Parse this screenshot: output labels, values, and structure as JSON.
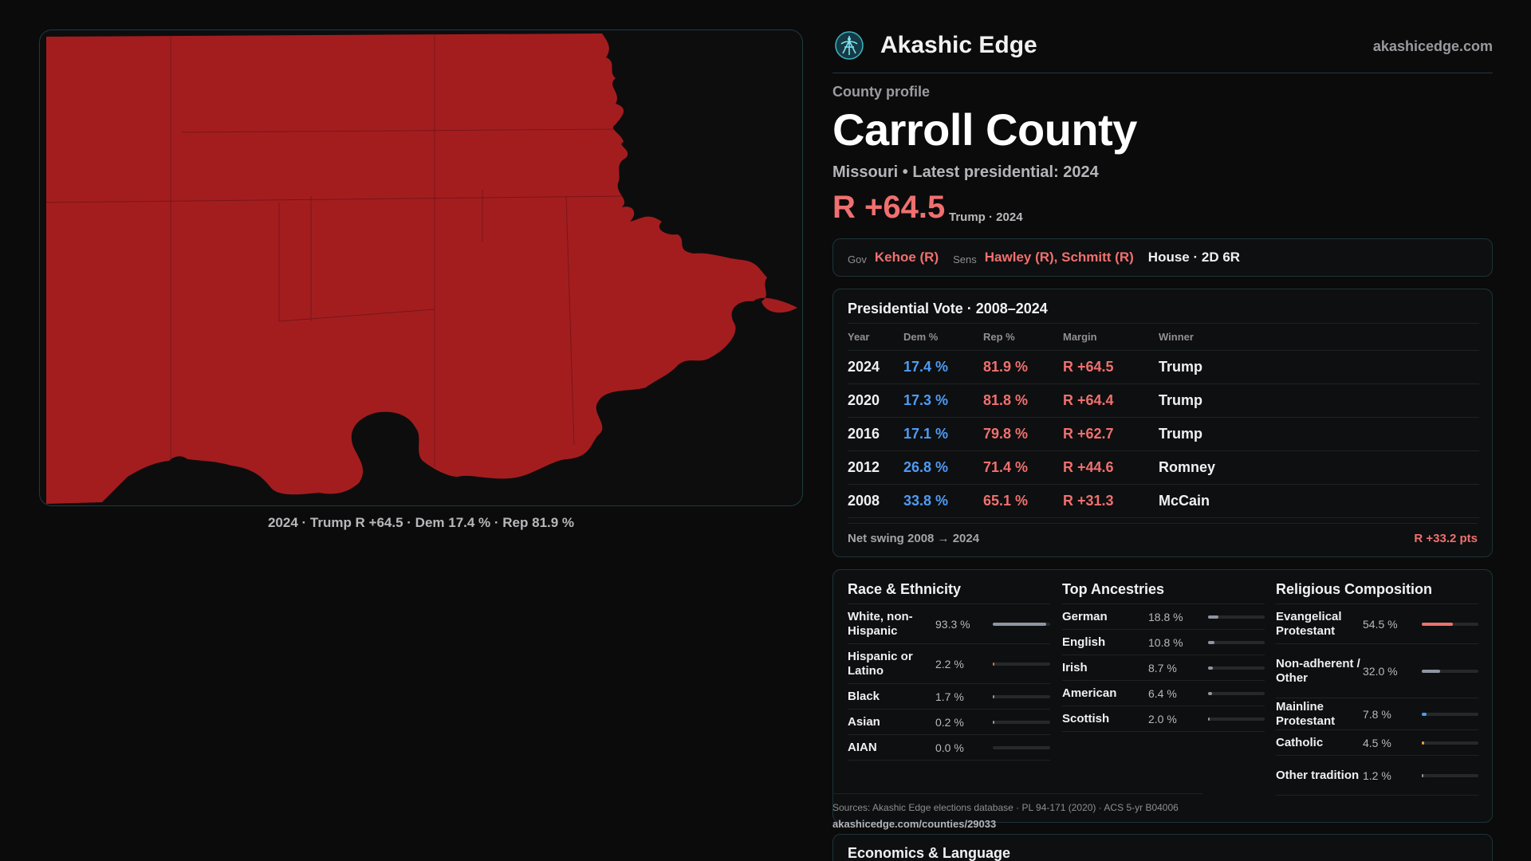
{
  "brand": {
    "name": "Akashic Edge",
    "url": "akashicedge.com",
    "logo_icon": "akashic-logo-icon"
  },
  "map": {
    "fill_color": "#a31d1f",
    "caption": "2024 · Trump R +64.5 · Dem 17.4 % · Rep 81.9 %"
  },
  "profile": {
    "eyebrow": "County profile",
    "title": "Carroll County",
    "subline": "Missouri • Latest presidential: 2024",
    "margin": "R +64.5",
    "margin_note": "Trump · 2024"
  },
  "officials": {
    "gov_label": "Gov",
    "gov": "Kehoe (R)",
    "sens_label": "Sens",
    "sens": "Hawley (R), Schmitt (R)",
    "house": "House · 2D 6R"
  },
  "vote_table": {
    "title": "Presidential Vote · 2008–2024",
    "headers": {
      "year": "Year",
      "dem": "Dem %",
      "rep": "Rep %",
      "margin": "Margin",
      "winner": "Winner"
    },
    "rows": [
      {
        "year": "2024",
        "dem": "17.4 %",
        "rep": "81.9 %",
        "margin": "R +64.5",
        "winner": "Trump"
      },
      {
        "year": "2020",
        "dem": "17.3 %",
        "rep": "81.8 %",
        "margin": "R +64.4",
        "winner": "Trump"
      },
      {
        "year": "2016",
        "dem": "17.1 %",
        "rep": "79.8 %",
        "margin": "R +62.7",
        "winner": "Trump"
      },
      {
        "year": "2012",
        "dem": "26.8 %",
        "rep": "71.4 %",
        "margin": "R +44.6",
        "winner": "Romney"
      },
      {
        "year": "2008",
        "dem": "33.8 %",
        "rep": "65.1 %",
        "margin": "R +31.3",
        "winner": "McCain"
      }
    ],
    "net_swing_label": "Net swing 2008 → 2024",
    "net_swing_value": "R +33.2 pts"
  },
  "race": {
    "title": "Race & Ethnicity",
    "items": [
      {
        "label": "White, non-Hispanic",
        "value": "93.3 %",
        "pct": 93.3,
        "color": "#8d96a3"
      },
      {
        "label": "Hispanic or Latino",
        "value": "2.2 %",
        "pct": 2.2,
        "color": "#e0703a"
      },
      {
        "label": "Black",
        "value": "1.7 %",
        "pct": 1.7,
        "color": "#8d96a3"
      },
      {
        "label": "Asian",
        "value": "0.2 %",
        "pct": 0.2,
        "color": "#8d96a3"
      },
      {
        "label": "AIAN",
        "value": "0.0 %",
        "pct": 0.0,
        "color": "#8d96a3"
      }
    ]
  },
  "ancestry": {
    "title": "Top Ancestries",
    "items": [
      {
        "label": "German",
        "value": "18.8 %",
        "pct": 18.8,
        "color": "#8d96a3"
      },
      {
        "label": "English",
        "value": "10.8 %",
        "pct": 10.8,
        "color": "#8d96a3"
      },
      {
        "label": "Irish",
        "value": "8.7 %",
        "pct": 8.7,
        "color": "#8d96a3"
      },
      {
        "label": "American",
        "value": "6.4 %",
        "pct": 6.4,
        "color": "#8d96a3"
      },
      {
        "label": "Scottish",
        "value": "2.0 %",
        "pct": 2.0,
        "color": "#8d96a3"
      }
    ]
  },
  "religion": {
    "title": "Religious Composition",
    "items": [
      {
        "label": "Evangelical Protestant",
        "value": "54.5 %",
        "pct": 54.5,
        "color": "#f0706f"
      },
      {
        "label": "Non-adherent / Other",
        "value": "32.0 %",
        "pct": 32.0,
        "color": "#8d96a3"
      },
      {
        "label": "Mainline Protestant",
        "value": "7.8 %",
        "pct": 7.8,
        "color": "#4f9bf5"
      },
      {
        "label": "Catholic",
        "value": "4.5 %",
        "pct": 4.5,
        "color": "#e8a23a"
      },
      {
        "label": "Other tradition",
        "value": "1.2 %",
        "pct": 1.2,
        "color": "#8d96a3"
      }
    ]
  },
  "sources": {
    "text": "Sources: Akashic Edge elections database · PL 94-171 (2020) · ACS 5-yr B04006",
    "url": "akashicedge.com/counties/29033"
  },
  "economics": {
    "title": "Economics & Language"
  }
}
